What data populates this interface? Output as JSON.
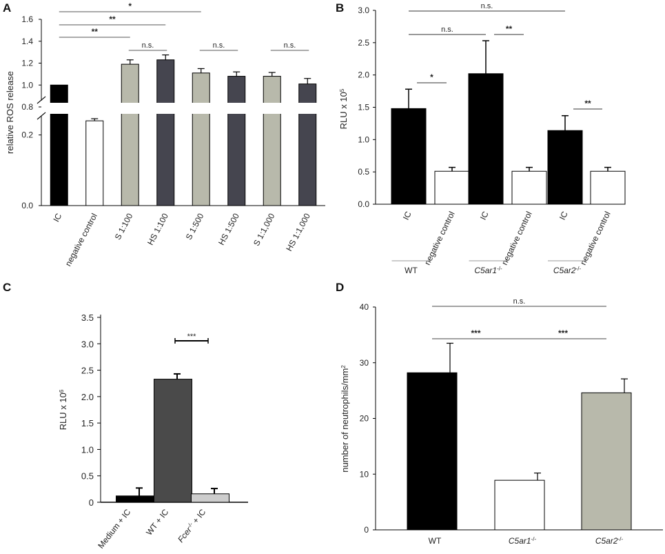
{
  "chart_data": [
    {
      "panel": "A",
      "type": "bar",
      "ylabel": "relative ROS release",
      "ylim": [
        0,
        1.6
      ],
      "axis_break": [
        0.25,
        0.8
      ],
      "yticks": [
        {
          "value": 0.0,
          "label": "0.0"
        },
        {
          "value": 0.2,
          "label": "0.2"
        },
        {
          "value": 0.8,
          "label": "0.8"
        },
        {
          "value": 1.0,
          "label": "1.0"
        },
        {
          "value": 1.2,
          "label": "1.2"
        },
        {
          "value": 1.4,
          "label": "1.4"
        },
        {
          "value": 1.6,
          "label": "1.6"
        }
      ],
      "categories": [
        "IC",
        "negative control",
        "S 1:100",
        "HS 1:100",
        "S 1:500",
        "HS 1:500",
        "S 1:1,000",
        "HS 1:1,000"
      ],
      "values": [
        1.0,
        0.24,
        1.19,
        1.23,
        1.11,
        1.08,
        1.08,
        1.01
      ],
      "errors": [
        0,
        0.006,
        0.04,
        0.045,
        0.04,
        0.04,
        0.035,
        0.05
      ],
      "colors": [
        "#000000",
        "#ffffff",
        "#b8b9ab",
        "#45454f",
        "#b8b9ab",
        "#45454f",
        "#b8b9ab",
        "#45454f"
      ],
      "significance": [
        {
          "from": 0,
          "to": 4,
          "label": "*"
        },
        {
          "from": 0,
          "to": 3,
          "label": "**"
        },
        {
          "from": 0,
          "to": 2,
          "label": "**"
        },
        {
          "from": 2,
          "to": 3,
          "label": "n.s."
        },
        {
          "from": 4,
          "to": 5,
          "label": "n.s."
        },
        {
          "from": 6,
          "to": 7,
          "label": "n.s."
        }
      ]
    },
    {
      "panel": "B",
      "type": "bar",
      "ylabel": "RLU x 10",
      "ylabel_exp": "5",
      "ylim": [
        0,
        3.0
      ],
      "yticks": [
        {
          "value": 0.0,
          "label": "0.0"
        },
        {
          "value": 0.5,
          "label": "0.5"
        },
        {
          "value": 1.0,
          "label": "1.0"
        },
        {
          "value": 1.5,
          "label": "1.5"
        },
        {
          "value": 2.0,
          "label": "2.0"
        },
        {
          "value": 2.5,
          "label": "2.5"
        },
        {
          "value": 3.0,
          "label": "3.0"
        }
      ],
      "categories": [
        "IC",
        "negative control",
        "IC",
        "negative control",
        "IC",
        "negative control"
      ],
      "values": [
        1.48,
        0.51,
        2.02,
        0.51,
        1.14,
        0.51
      ],
      "errors": [
        0.3,
        0.06,
        0.51,
        0.06,
        0.23,
        0.06
      ],
      "colors": [
        "#000000",
        "#ffffff",
        "#000000",
        "#ffffff",
        "#000000",
        "#ffffff"
      ],
      "groups": [
        {
          "label": "WT",
          "exp": ""
        },
        {
          "label": "C5ar1",
          "exp": "-/-"
        },
        {
          "label": "C5ar2",
          "exp": "-/-"
        }
      ],
      "significance": [
        {
          "from": 0,
          "to": 4,
          "label": "n.s."
        },
        {
          "from": 0,
          "to": 2,
          "label": "n.s."
        },
        {
          "from": 2,
          "to": 3,
          "label": "**"
        },
        {
          "from": 0,
          "to": 1,
          "label": "*"
        },
        {
          "from": 4,
          "to": 5,
          "label": "**"
        }
      ]
    },
    {
      "panel": "C",
      "type": "bar",
      "ylabel": "RLU x 10",
      "ylabel_exp": "6",
      "ylim": [
        0,
        3.5
      ],
      "yticks": [
        {
          "value": 0.0,
          "label": "0"
        },
        {
          "value": 0.5,
          "label": "0.5"
        },
        {
          "value": 1.0,
          "label": "1.0"
        },
        {
          "value": 1.5,
          "label": "1.5"
        },
        {
          "value": 2.0,
          "label": "2.0"
        },
        {
          "value": 2.5,
          "label": "2.5"
        },
        {
          "value": 3.0,
          "label": "3.0"
        },
        {
          "value": 3.5,
          "label": "3.5"
        }
      ],
      "categories": [
        {
          "pre": "Medium + IC",
          "exp": "",
          "post": ""
        },
        {
          "pre": "WT + IC",
          "exp": "",
          "post": ""
        },
        {
          "pre": "Fcer",
          "exp": "-/-",
          "post": " + IC"
        }
      ],
      "values": [
        0.12,
        2.33,
        0.16
      ],
      "errors": [
        0.15,
        0.1,
        0.1
      ],
      "colors": [
        "#000000",
        "#4a4a4a",
        "#cdcdcd"
      ],
      "significance": [
        {
          "from": 1,
          "to": 2,
          "label": "***"
        }
      ]
    },
    {
      "panel": "D",
      "type": "bar",
      "ylabel": "number of neutrophils/mm",
      "ylabel_exp": "2",
      "ylim": [
        0,
        40
      ],
      "yticks": [
        {
          "value": 0,
          "label": "0"
        },
        {
          "value": 10,
          "label": "10"
        },
        {
          "value": 20,
          "label": "20"
        },
        {
          "value": 30,
          "label": "30"
        },
        {
          "value": 40,
          "label": "40"
        }
      ],
      "categories": [
        {
          "label": "WT",
          "exp": ""
        },
        {
          "label": "C5ar1",
          "exp": "-/-"
        },
        {
          "label": "C5ar2",
          "exp": "-/-"
        }
      ],
      "values": [
        28.2,
        8.9,
        24.6
      ],
      "errors": [
        5.3,
        1.3,
        2.5
      ],
      "colors": [
        "#000000",
        "#ffffff",
        "#b8b9ab"
      ],
      "significance": [
        {
          "from": 0,
          "to": 2,
          "label": "n.s."
        },
        {
          "from": 0,
          "to": 1,
          "label": "***"
        },
        {
          "from": 1,
          "to": 2,
          "label": "***"
        }
      ]
    }
  ]
}
